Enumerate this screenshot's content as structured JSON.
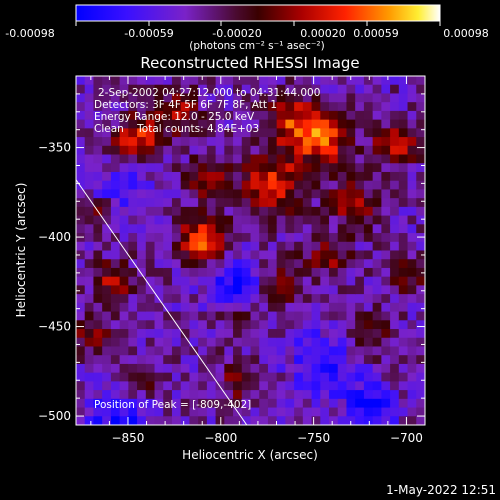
{
  "colorbar": {
    "ticks": [
      "-0.00098",
      "-0.00059",
      "-0.00020",
      "0.00020",
      "0.00059",
      "0.00098"
    ],
    "unit_label": "(photons cm⁻² s⁻¹ asec⁻²)"
  },
  "chart_data": {
    "type": "heatmap",
    "title": "Reconstructed RHESSI Image",
    "xlabel": "Heliocentric X (arcsec)",
    "ylabel": "Heliocentric Y (arcsec)",
    "xlim": [
      -878,
      -690
    ],
    "ylim": [
      -505,
      -310
    ],
    "x_ticks": [
      -850,
      -800,
      -750,
      -700
    ],
    "y_ticks": [
      -350,
      -400,
      -450,
      -500
    ],
    "x_tick_labels": [
      "−850",
      "−800",
      "−750",
      "−700"
    ],
    "y_tick_labels": [
      "−350",
      "−400",
      "−450",
      "−500"
    ],
    "color_range": [
      -0.00098,
      0.00098
    ],
    "colormap": "blue-purple-red-yellow-white",
    "annotations": [
      "2-Sep-2002 04:27:12.000 to 04:31:44.000",
      "Detectors: 3F 4F 5F 6F 7F 8F, Att 1",
      "Energy Range: 12.0 - 25.0 keV",
      "Clean    Total counts: 4.84E+03"
    ],
    "peak_label": "Position of Peak = [-809,-402]",
    "peak": {
      "x": -809,
      "y": -402
    },
    "limb_line": [
      [
        -878,
        -368
      ],
      [
        -786,
        -505
      ]
    ],
    "bright_sources": [
      {
        "x": -809,
        "y": -402,
        "amp": 0.00098,
        "sigma": 9
      },
      {
        "x": -772,
        "y": -370,
        "amp": 0.00075,
        "sigma": 12
      },
      {
        "x": -745,
        "y": -345,
        "amp": 0.0009,
        "sigma": 10
      },
      {
        "x": -762,
        "y": -335,
        "amp": 0.00065,
        "sigma": 10
      },
      {
        "x": -845,
        "y": -345,
        "amp": 0.00072,
        "sigma": 9
      },
      {
        "x": -823,
        "y": -330,
        "amp": 0.0005,
        "sigma": 9
      },
      {
        "x": -705,
        "y": -348,
        "amp": 0.0008,
        "sigma": 8
      },
      {
        "x": -728,
        "y": -382,
        "amp": 0.00055,
        "sigma": 9
      },
      {
        "x": -742,
        "y": -410,
        "amp": 0.0005,
        "sigma": 8
      },
      {
        "x": -770,
        "y": -425,
        "amp": 0.00045,
        "sigma": 10
      },
      {
        "x": -720,
        "y": -455,
        "amp": 0.00045,
        "sigma": 8
      },
      {
        "x": -858,
        "y": -425,
        "amp": 0.00055,
        "sigma": 8
      },
      {
        "x": -870,
        "y": -455,
        "amp": 0.0005,
        "sigma": 8
      },
      {
        "x": -845,
        "y": -480,
        "amp": 0.0005,
        "sigma": 8
      },
      {
        "x": -808,
        "y": -368,
        "amp": 0.00055,
        "sigma": 8
      },
      {
        "x": -790,
        "y": -445,
        "amp": 0.00042,
        "sigma": 8
      },
      {
        "x": -790,
        "y": -480,
        "amp": 0.00045,
        "sigma": 8
      },
      {
        "x": -700,
        "y": -420,
        "amp": 0.0005,
        "sigma": 7
      },
      {
        "x": -865,
        "y": -385,
        "amp": 0.00045,
        "sigma": 7
      },
      {
        "x": -855,
        "y": -500,
        "amp": -0.0005,
        "sigma": 12
      },
      {
        "x": -790,
        "y": -425,
        "amp": -0.00055,
        "sigma": 12
      },
      {
        "x": -745,
        "y": -470,
        "amp": -0.0005,
        "sigma": 12
      },
      {
        "x": -855,
        "y": -375,
        "amp": -0.00045,
        "sigma": 10
      },
      {
        "x": -720,
        "y": -495,
        "amp": -0.0005,
        "sigma": 10
      }
    ]
  },
  "footer": {
    "timestamp": "1-May-2022 12:51"
  }
}
